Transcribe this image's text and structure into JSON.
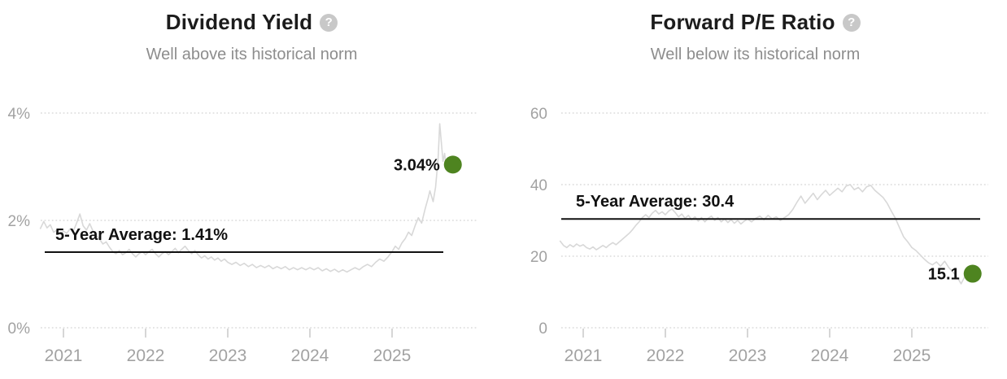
{
  "help_icon_glyph": "?",
  "colors": {
    "background": "#ffffff",
    "title_text": "#1c1c1c",
    "subtitle_text": "#8d8d8d",
    "axis_text": "#a2a2a2",
    "series_line": "#d8d8d8",
    "gridline": "#dcdcdc",
    "average_line": "#111111",
    "annotation_text": "#111111",
    "current_dot": "#4e8420",
    "help_icon_bg": "#c8c8c8"
  },
  "chart_data": [
    {
      "type": "line",
      "title": "Dividend Yield",
      "subtitle": "Well above its historical norm",
      "average_label": "5-Year Average: 1.41%",
      "average_value": 1.41,
      "current_label": "3.04%",
      "current_value": 3.04,
      "ylim": [
        0,
        4
      ],
      "yticks": [
        0,
        2,
        4
      ],
      "ytick_labels": [
        "0%",
        "2%",
        "4%"
      ],
      "xticks": [
        2021,
        2022,
        2023,
        2024,
        2025
      ],
      "xtick_labels": [
        "2021",
        "2022",
        "2023",
        "2024",
        "2025"
      ],
      "grid": "dotted-horizontal",
      "legend": "none",
      "x": [
        2020.72,
        2020.76,
        2020.8,
        2020.84,
        2020.88,
        2020.92,
        2020.96,
        2021.0,
        2021.04,
        2021.08,
        2021.12,
        2021.16,
        2021.2,
        2021.24,
        2021.28,
        2021.32,
        2021.36,
        2021.4,
        2021.44,
        2021.48,
        2021.52,
        2021.56,
        2021.6,
        2021.64,
        2021.68,
        2021.72,
        2021.76,
        2021.8,
        2021.84,
        2021.88,
        2021.92,
        2021.96,
        2022.0,
        2022.04,
        2022.08,
        2022.12,
        2022.16,
        2022.2,
        2022.24,
        2022.28,
        2022.32,
        2022.36,
        2022.4,
        2022.44,
        2022.48,
        2022.52,
        2022.56,
        2022.6,
        2022.64,
        2022.68,
        2022.72,
        2022.76,
        2022.8,
        2022.84,
        2022.88,
        2022.92,
        2022.96,
        2023.0,
        2023.05,
        2023.1,
        2023.15,
        2023.2,
        2023.25,
        2023.3,
        2023.35,
        2023.4,
        2023.45,
        2023.5,
        2023.55,
        2023.6,
        2023.65,
        2023.7,
        2023.75,
        2023.8,
        2023.85,
        2023.9,
        2023.95,
        2024.0,
        2024.05,
        2024.1,
        2024.15,
        2024.2,
        2024.25,
        2024.3,
        2024.35,
        2024.4,
        2024.45,
        2024.5,
        2024.55,
        2024.6,
        2024.65,
        2024.7,
        2024.75,
        2024.8,
        2024.85,
        2024.9,
        2024.95,
        2025.0,
        2025.04,
        2025.08,
        2025.12,
        2025.16,
        2025.2,
        2025.24,
        2025.28,
        2025.32,
        2025.36,
        2025.4,
        2025.44,
        2025.46,
        2025.5,
        2025.53,
        2025.56,
        2025.58,
        2025.6,
        2025.62,
        2025.64,
        2025.66,
        2025.68,
        2025.7,
        2025.72,
        2025.74
      ],
      "values": [
        1.85,
        1.98,
        1.86,
        1.92,
        1.78,
        1.82,
        1.74,
        1.8,
        1.76,
        1.84,
        1.8,
        1.95,
        2.12,
        1.9,
        1.82,
        1.94,
        1.8,
        1.72,
        1.65,
        1.56,
        1.6,
        1.5,
        1.42,
        1.38,
        1.44,
        1.36,
        1.4,
        1.46,
        1.38,
        1.32,
        1.38,
        1.42,
        1.36,
        1.42,
        1.46,
        1.38,
        1.32,
        1.38,
        1.42,
        1.36,
        1.42,
        1.48,
        1.4,
        1.46,
        1.52,
        1.44,
        1.38,
        1.44,
        1.36,
        1.3,
        1.34,
        1.28,
        1.32,
        1.26,
        1.3,
        1.24,
        1.28,
        1.22,
        1.18,
        1.22,
        1.16,
        1.2,
        1.14,
        1.18,
        1.12,
        1.16,
        1.12,
        1.16,
        1.1,
        1.14,
        1.1,
        1.14,
        1.08,
        1.12,
        1.08,
        1.12,
        1.08,
        1.12,
        1.08,
        1.12,
        1.06,
        1.1,
        1.05,
        1.09,
        1.04,
        1.08,
        1.04,
        1.08,
        1.12,
        1.08,
        1.14,
        1.18,
        1.14,
        1.22,
        1.28,
        1.24,
        1.32,
        1.42,
        1.52,
        1.46,
        1.58,
        1.66,
        1.78,
        1.72,
        1.9,
        2.05,
        1.95,
        2.2,
        2.42,
        2.55,
        2.35,
        2.62,
        3.15,
        3.8,
        3.45,
        3.1,
        3.25,
        2.95,
        3.1,
        3.0,
        3.08,
        3.04
      ]
    },
    {
      "type": "line",
      "title": "Forward P/E Ratio",
      "subtitle": "Well below its historical norm",
      "average_label": "5-Year Average: 30.4",
      "average_value": 30.4,
      "current_label": "15.1",
      "current_value": 15.1,
      "ylim": [
        0,
        60
      ],
      "yticks": [
        0,
        20,
        40,
        60
      ],
      "ytick_labels": [
        "0",
        "20",
        "40",
        "60"
      ],
      "xticks": [
        2021,
        2022,
        2023,
        2024,
        2025
      ],
      "xtick_labels": [
        "2021",
        "2022",
        "2023",
        "2024",
        "2025"
      ],
      "grid": "dotted-horizontal",
      "legend": "none",
      "x": [
        2020.72,
        2020.76,
        2020.8,
        2020.84,
        2020.88,
        2020.92,
        2020.96,
        2021.0,
        2021.04,
        2021.08,
        2021.12,
        2021.16,
        2021.2,
        2021.24,
        2021.28,
        2021.32,
        2021.36,
        2021.4,
        2021.44,
        2021.48,
        2021.52,
        2021.56,
        2021.6,
        2021.64,
        2021.68,
        2021.72,
        2021.76,
        2021.8,
        2021.84,
        2021.88,
        2021.92,
        2021.96,
        2022.0,
        2022.04,
        2022.08,
        2022.12,
        2022.16,
        2022.2,
        2022.24,
        2022.28,
        2022.32,
        2022.36,
        2022.4,
        2022.44,
        2022.48,
        2022.52,
        2022.56,
        2022.6,
        2022.64,
        2022.68,
        2022.72,
        2022.76,
        2022.8,
        2022.84,
        2022.88,
        2022.92,
        2022.96,
        2023.0,
        2023.05,
        2023.1,
        2023.15,
        2023.2,
        2023.25,
        2023.3,
        2023.35,
        2023.4,
        2023.45,
        2023.5,
        2023.55,
        2023.6,
        2023.65,
        2023.7,
        2023.75,
        2023.8,
        2023.85,
        2023.9,
        2023.95,
        2024.0,
        2024.05,
        2024.1,
        2024.15,
        2024.2,
        2024.25,
        2024.3,
        2024.35,
        2024.4,
        2024.45,
        2024.5,
        2024.55,
        2024.6,
        2024.65,
        2024.7,
        2024.75,
        2024.8,
        2024.85,
        2024.9,
        2024.95,
        2025.0,
        2025.05,
        2025.1,
        2025.15,
        2025.2,
        2025.25,
        2025.3,
        2025.35,
        2025.4,
        2025.45,
        2025.5,
        2025.55,
        2025.6,
        2025.65,
        2025.68,
        2025.71,
        2025.74
      ],
      "values": [
        24.2,
        23.0,
        22.4,
        23.2,
        22.6,
        23.4,
        22.8,
        23.2,
        22.4,
        22.0,
        22.6,
        21.8,
        22.4,
        23.0,
        22.4,
        23.2,
        23.8,
        23.2,
        24.0,
        24.8,
        25.6,
        26.4,
        27.4,
        28.6,
        29.6,
        30.8,
        31.6,
        30.8,
        32.0,
        32.8,
        31.8,
        32.4,
        31.6,
        32.6,
        33.2,
        32.2,
        31.0,
        31.8,
        30.6,
        31.4,
        30.2,
        31.0,
        29.8,
        30.8,
        29.6,
        30.6,
        31.2,
        30.0,
        30.8,
        29.6,
        30.4,
        29.4,
        30.2,
        29.2,
        30.0,
        29.0,
        29.8,
        30.4,
        29.6,
        30.6,
        31.2,
        30.2,
        31.4,
        30.4,
        31.0,
        30.0,
        30.8,
        31.6,
        33.0,
        35.0,
        36.8,
        34.8,
        36.2,
        37.6,
        35.8,
        37.2,
        38.4,
        37.0,
        38.0,
        39.0,
        38.0,
        39.6,
        40.0,
        38.6,
        39.2,
        38.0,
        39.4,
        39.8,
        38.4,
        37.4,
        36.4,
        34.8,
        32.6,
        30.6,
        28.0,
        25.4,
        24.0,
        22.4,
        21.6,
        20.4,
        19.2,
        18.2,
        17.6,
        18.4,
        17.2,
        18.6,
        16.8,
        15.6,
        14.2,
        12.3,
        14.6,
        13.8,
        14.8,
        15.1
      ]
    }
  ]
}
